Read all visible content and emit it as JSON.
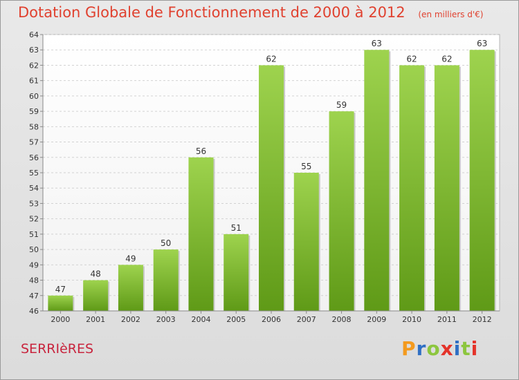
{
  "chart_data": {
    "type": "bar",
    "title": "Dotation Globale de Fonctionnement de 2000 à 2012",
    "subtitle": "(en milliers d'€)",
    "categories": [
      "2000",
      "2001",
      "2002",
      "2003",
      "2004",
      "2005",
      "2006",
      "2007",
      "2008",
      "2009",
      "2010",
      "2011",
      "2012"
    ],
    "values": [
      47,
      48,
      49,
      50,
      56,
      51,
      62,
      55,
      59,
      63,
      62,
      62,
      63
    ],
    "ylim": [
      46,
      64
    ],
    "yticks": [
      46,
      47,
      48,
      49,
      50,
      51,
      52,
      53,
      54,
      55,
      56,
      57,
      58,
      59,
      60,
      61,
      62,
      63,
      64
    ],
    "grid": true,
    "bar_color": "#7dbb2c"
  },
  "footer": {
    "place": "SERRIèRES",
    "logo_letters": [
      "P",
      "r",
      "o",
      "x",
      "i",
      "t",
      "i"
    ],
    "logo_colors": [
      "#f39a1e",
      "#2f6fc4",
      "#8cc63e",
      "#e4332a",
      "#2f6fc4",
      "#8cc63e",
      "#e4332a"
    ]
  }
}
